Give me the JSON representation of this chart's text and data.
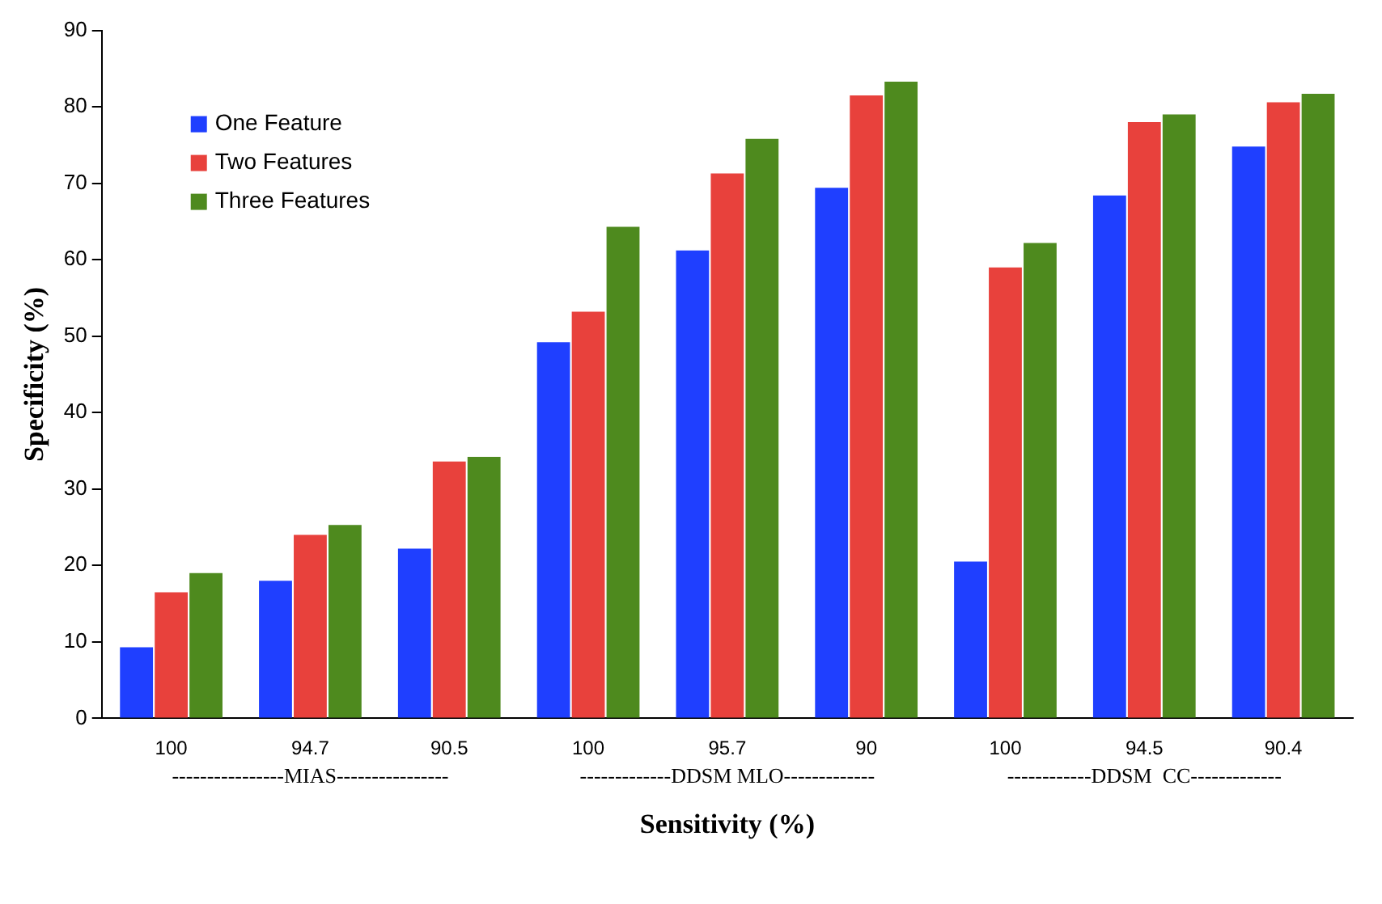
{
  "chart_data": {
    "type": "bar",
    "xlabel": "Sensitivity (%)",
    "ylabel": "Specificity (%)",
    "categories": [
      "100",
      "94.7",
      "90.5",
      "100",
      "95.7",
      "90",
      "100",
      "94.5",
      "90.4"
    ],
    "series": [
      {
        "name": "One Feature",
        "color": "#1f3fff",
        "values": [
          9.3,
          18,
          22.2,
          49.2,
          61.2,
          69.4,
          20.5,
          68.4,
          74.8
        ]
      },
      {
        "name": "Two Features",
        "color": "#e8413c",
        "values": [
          16.5,
          24,
          33.6,
          53.2,
          71.3,
          81.5,
          59,
          78,
          80.6
        ]
      },
      {
        "name": "Three Features",
        "color": "#4e8a1e",
        "values": [
          19,
          25.3,
          34.2,
          64.3,
          75.8,
          83.3,
          62.2,
          79,
          81.7
        ]
      }
    ],
    "ylim": [
      0,
      90
    ],
    "yticks": [
      0,
      10,
      20,
      30,
      40,
      50,
      60,
      70,
      80,
      90
    ],
    "grid": false,
    "legend": "top left",
    "annotations": [
      "----------------MIAS----------------",
      "-------------DDSM MLO-------------",
      "------------DDSM  CC-------------"
    ]
  }
}
